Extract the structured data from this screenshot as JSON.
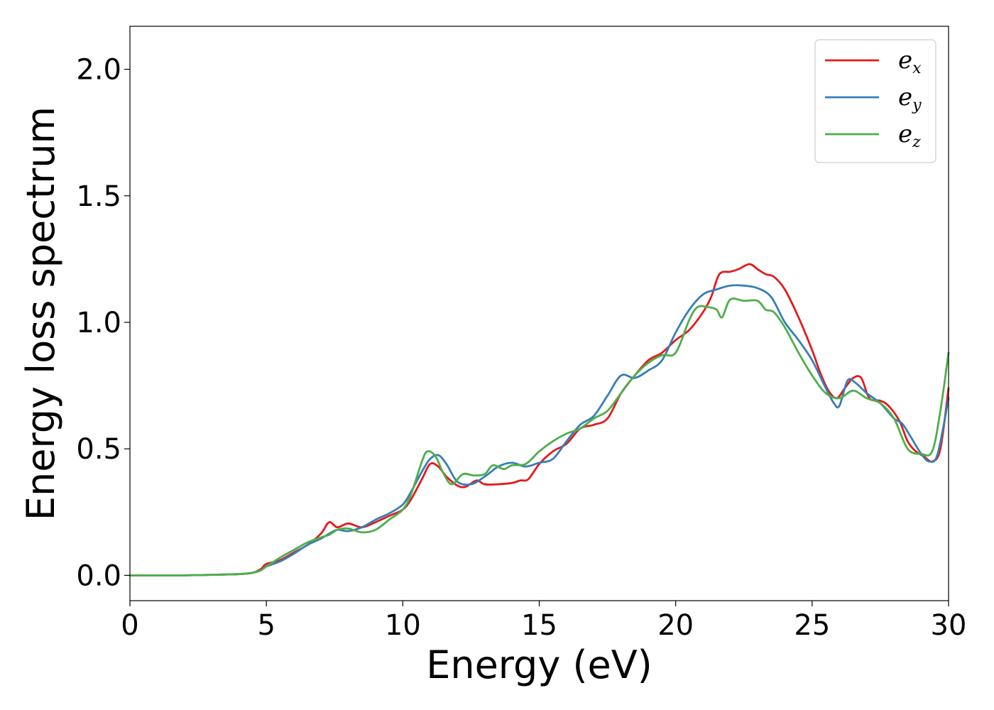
{
  "chart_data": {
    "type": "line",
    "title": "",
    "xlabel": "Energy (eV)",
    "ylabel": "Energy loss spectrum",
    "xlim": [
      0,
      30
    ],
    "ylim": [
      -0.1,
      2.17
    ],
    "xticks": [
      0,
      5,
      10,
      15,
      20,
      25,
      30
    ],
    "yticks": [
      0.0,
      0.5,
      1.0,
      1.5,
      2.0
    ],
    "xtick_labels": [
      "0",
      "5",
      "10",
      "15",
      "20",
      "25",
      "30"
    ],
    "ytick_labels": [
      "0.0",
      "0.5",
      "1.0",
      "1.5",
      "2.0"
    ],
    "grid": false,
    "legend": "top-right",
    "series": [
      {
        "label_base": "e",
        "label_sub": "x",
        "color": "#e41a1c",
        "points": [
          [
            0,
            0
          ],
          [
            1,
            0
          ],
          [
            2,
            0
          ],
          [
            3,
            0.002
          ],
          [
            4,
            0.005
          ],
          [
            4.5,
            0.01
          ],
          [
            4.8,
            0.025
          ],
          [
            5,
            0.045
          ],
          [
            5.5,
            0.06
          ],
          [
            6,
            0.09
          ],
          [
            6.5,
            0.12
          ],
          [
            7,
            0.165
          ],
          [
            7.3,
            0.21
          ],
          [
            7.6,
            0.19
          ],
          [
            8,
            0.205
          ],
          [
            8.5,
            0.19
          ],
          [
            9,
            0.21
          ],
          [
            9.5,
            0.235
          ],
          [
            10,
            0.26
          ],
          [
            10.3,
            0.3
          ],
          [
            10.7,
            0.38
          ],
          [
            11,
            0.44
          ],
          [
            11.3,
            0.43
          ],
          [
            11.6,
            0.39
          ],
          [
            12,
            0.355
          ],
          [
            12.3,
            0.35
          ],
          [
            12.7,
            0.375
          ],
          [
            13,
            0.36
          ],
          [
            13.5,
            0.36
          ],
          [
            14,
            0.365
          ],
          [
            14.3,
            0.375
          ],
          [
            14.6,
            0.38
          ],
          [
            15,
            0.44
          ],
          [
            15.5,
            0.49
          ],
          [
            16,
            0.52
          ],
          [
            16.5,
            0.58
          ],
          [
            17,
            0.595
          ],
          [
            17.5,
            0.62
          ],
          [
            18,
            0.72
          ],
          [
            18.5,
            0.79
          ],
          [
            19,
            0.85
          ],
          [
            19.5,
            0.88
          ],
          [
            20,
            0.93
          ],
          [
            20.5,
            0.97
          ],
          [
            21,
            1.04
          ],
          [
            21.3,
            1.1
          ],
          [
            21.6,
            1.19
          ],
          [
            22,
            1.2
          ],
          [
            22.3,
            1.21
          ],
          [
            22.7,
            1.23
          ],
          [
            23,
            1.21
          ],
          [
            23.3,
            1.19
          ],
          [
            23.6,
            1.18
          ],
          [
            24,
            1.13
          ],
          [
            24.5,
            1.02
          ],
          [
            25,
            0.89
          ],
          [
            25.3,
            0.8
          ],
          [
            25.6,
            0.73
          ],
          [
            25.9,
            0.7
          ],
          [
            26.2,
            0.74
          ],
          [
            26.5,
            0.78
          ],
          [
            26.8,
            0.78
          ],
          [
            27.1,
            0.7
          ],
          [
            27.5,
            0.69
          ],
          [
            27.8,
            0.67
          ],
          [
            28.2,
            0.61
          ],
          [
            28.5,
            0.53
          ],
          [
            28.8,
            0.49
          ],
          [
            29.1,
            0.47
          ],
          [
            29.4,
            0.45
          ],
          [
            29.7,
            0.5
          ],
          [
            30,
            0.74
          ]
        ]
      },
      {
        "label_base": "e",
        "label_sub": "y",
        "color": "#377eb8",
        "points": [
          [
            0,
            0
          ],
          [
            1,
            0
          ],
          [
            2,
            0
          ],
          [
            3,
            0.002
          ],
          [
            4,
            0.005
          ],
          [
            4.5,
            0.01
          ],
          [
            4.8,
            0.02
          ],
          [
            5,
            0.035
          ],
          [
            5.5,
            0.055
          ],
          [
            6,
            0.085
          ],
          [
            6.5,
            0.12
          ],
          [
            7,
            0.145
          ],
          [
            7.3,
            0.165
          ],
          [
            7.6,
            0.18
          ],
          [
            8,
            0.175
          ],
          [
            8.5,
            0.19
          ],
          [
            9,
            0.22
          ],
          [
            9.5,
            0.245
          ],
          [
            10,
            0.28
          ],
          [
            10.3,
            0.33
          ],
          [
            10.7,
            0.41
          ],
          [
            11,
            0.46
          ],
          [
            11.3,
            0.475
          ],
          [
            11.6,
            0.44
          ],
          [
            12,
            0.37
          ],
          [
            12.5,
            0.36
          ],
          [
            13,
            0.39
          ],
          [
            13.5,
            0.43
          ],
          [
            14,
            0.445
          ],
          [
            14.5,
            0.43
          ],
          [
            15,
            0.445
          ],
          [
            15.5,
            0.46
          ],
          [
            16,
            0.53
          ],
          [
            16.5,
            0.595
          ],
          [
            17,
            0.63
          ],
          [
            17.5,
            0.71
          ],
          [
            18,
            0.79
          ],
          [
            18.5,
            0.78
          ],
          [
            19,
            0.81
          ],
          [
            19.5,
            0.85
          ],
          [
            20,
            0.96
          ],
          [
            20.5,
            1.05
          ],
          [
            21,
            1.11
          ],
          [
            21.5,
            1.13
          ],
          [
            22,
            1.145
          ],
          [
            22.5,
            1.145
          ],
          [
            23,
            1.135
          ],
          [
            23.5,
            1.1
          ],
          [
            24,
            1.0
          ],
          [
            24.5,
            0.93
          ],
          [
            25,
            0.85
          ],
          [
            25.5,
            0.74
          ],
          [
            25.8,
            0.68
          ],
          [
            26,
            0.67
          ],
          [
            26.3,
            0.77
          ],
          [
            26.6,
            0.76
          ],
          [
            27,
            0.72
          ],
          [
            27.5,
            0.68
          ],
          [
            28,
            0.62
          ],
          [
            28.3,
            0.6
          ],
          [
            28.6,
            0.55
          ],
          [
            29,
            0.48
          ],
          [
            29.3,
            0.45
          ],
          [
            29.6,
            0.48
          ],
          [
            30,
            0.7
          ]
        ]
      },
      {
        "label_base": "e",
        "label_sub": "z",
        "color": "#4daf4a",
        "points": [
          [
            0,
            0
          ],
          [
            1,
            0
          ],
          [
            2,
            0
          ],
          [
            3,
            0.002
          ],
          [
            4,
            0.005
          ],
          [
            4.5,
            0.01
          ],
          [
            4.8,
            0.02
          ],
          [
            5,
            0.035
          ],
          [
            5.5,
            0.07
          ],
          [
            6,
            0.1
          ],
          [
            6.5,
            0.13
          ],
          [
            7,
            0.15
          ],
          [
            7.3,
            0.16
          ],
          [
            7.6,
            0.18
          ],
          [
            8,
            0.185
          ],
          [
            8.5,
            0.17
          ],
          [
            9,
            0.18
          ],
          [
            9.5,
            0.22
          ],
          [
            10,
            0.26
          ],
          [
            10.3,
            0.32
          ],
          [
            10.7,
            0.45
          ],
          [
            10.9,
            0.49
          ],
          [
            11.2,
            0.47
          ],
          [
            11.5,
            0.4
          ],
          [
            11.8,
            0.36
          ],
          [
            12.2,
            0.4
          ],
          [
            12.6,
            0.395
          ],
          [
            13,
            0.4
          ],
          [
            13.3,
            0.435
          ],
          [
            13.7,
            0.42
          ],
          [
            14,
            0.435
          ],
          [
            14.5,
            0.44
          ],
          [
            15,
            0.49
          ],
          [
            15.5,
            0.53
          ],
          [
            16,
            0.56
          ],
          [
            16.5,
            0.58
          ],
          [
            17,
            0.62
          ],
          [
            17.5,
            0.65
          ],
          [
            18,
            0.72
          ],
          [
            18.5,
            0.79
          ],
          [
            19,
            0.84
          ],
          [
            19.5,
            0.87
          ],
          [
            20,
            0.88
          ],
          [
            20.5,
            1.01
          ],
          [
            20.8,
            1.06
          ],
          [
            21.2,
            1.06
          ],
          [
            21.5,
            1.05
          ],
          [
            21.7,
            1.02
          ],
          [
            22,
            1.09
          ],
          [
            22.5,
            1.085
          ],
          [
            23,
            1.085
          ],
          [
            23.3,
            1.05
          ],
          [
            23.6,
            1.04
          ],
          [
            24,
            0.98
          ],
          [
            24.5,
            0.88
          ],
          [
            25,
            0.79
          ],
          [
            25.5,
            0.72
          ],
          [
            26,
            0.7
          ],
          [
            26.5,
            0.73
          ],
          [
            27,
            0.7
          ],
          [
            27.5,
            0.68
          ],
          [
            28,
            0.62
          ],
          [
            28.5,
            0.5
          ],
          [
            29,
            0.48
          ],
          [
            29.4,
            0.49
          ],
          [
            29.7,
            0.65
          ],
          [
            30,
            0.88
          ]
        ]
      }
    ]
  }
}
